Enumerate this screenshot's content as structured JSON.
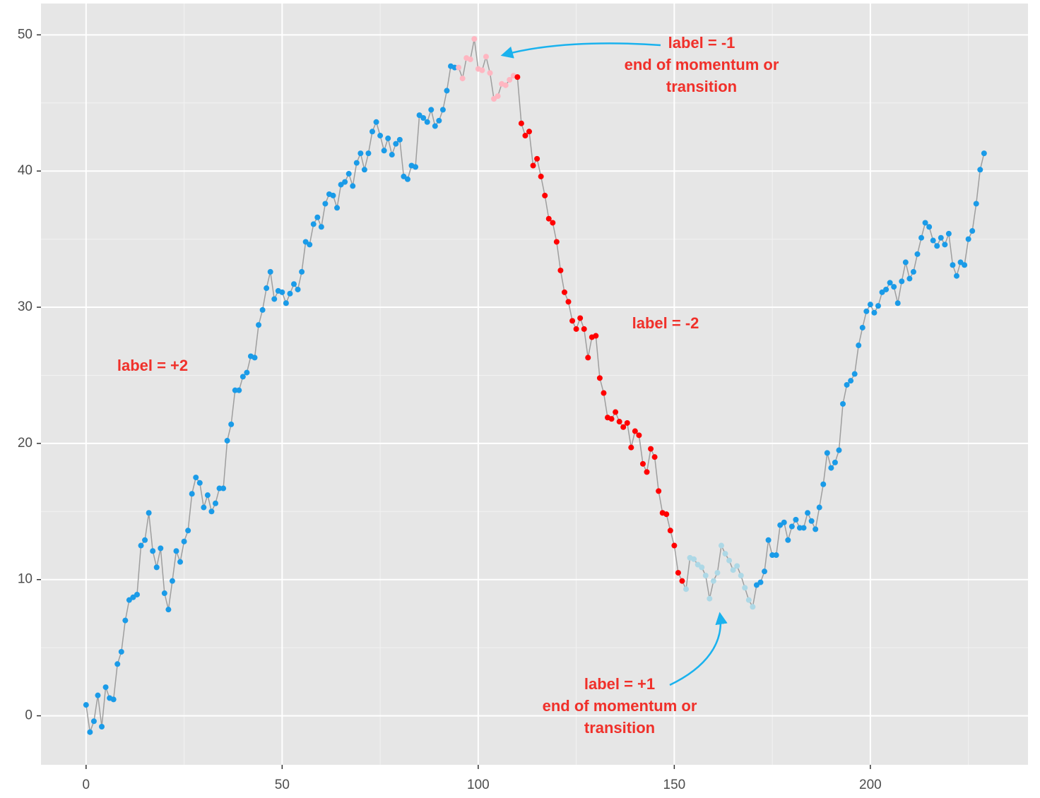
{
  "chart_data": {
    "type": "line",
    "xlim": [
      -11.5,
      240.2
    ],
    "ylim": [
      -3.6,
      52.3
    ],
    "xticks": [
      0,
      50,
      100,
      150,
      200
    ],
    "yticks": [
      0,
      10,
      20,
      30,
      40,
      50
    ],
    "minor_xticks": [
      25,
      75,
      125,
      175,
      225
    ],
    "minor_yticks": [
      5,
      15,
      25,
      35,
      45
    ],
    "grid": true,
    "line_color": "#9e9e9e",
    "series": [
      {
        "color": "#1a9be8",
        "x": [
          0,
          1,
          2,
          3,
          4,
          5,
          6,
          7,
          8,
          9,
          10,
          11,
          12,
          13,
          14,
          15,
          16,
          17,
          18,
          19,
          20,
          21,
          22,
          23,
          24,
          25,
          26,
          27,
          28,
          29,
          30,
          31,
          32,
          33,
          34,
          35,
          36,
          37,
          38,
          39,
          40,
          41,
          42,
          43,
          44,
          45,
          46,
          47,
          48,
          49,
          50,
          51,
          52,
          53,
          54,
          55,
          56,
          57,
          58,
          59,
          60,
          61,
          62,
          63,
          64,
          65,
          66,
          67,
          68,
          69,
          70,
          71,
          72,
          73,
          74,
          75,
          76,
          77,
          78,
          79,
          80,
          81,
          82,
          83,
          84,
          85,
          86,
          87,
          88,
          89,
          90,
          91,
          92,
          93,
          94
        ],
        "values": [
          0.8,
          -1.2,
          -0.4,
          1.5,
          -0.8,
          2.1,
          1.3,
          1.2,
          3.8,
          4.7,
          7.0,
          8.5,
          8.7,
          8.9,
          12.5,
          12.9,
          14.9,
          12.1,
          10.9,
          12.3,
          9.0,
          7.8,
          9.9,
          12.1,
          11.3,
          12.8,
          13.6,
          16.3,
          17.5,
          17.1,
          15.3,
          16.2,
          15.0,
          15.6,
          16.7,
          16.7,
          20.2,
          21.4,
          23.9,
          23.9,
          24.9,
          25.2,
          26.4,
          26.3,
          28.7,
          29.8,
          31.4,
          32.6,
          30.6,
          31.2,
          31.1,
          30.3,
          31.0,
          31.7,
          31.3,
          32.6,
          34.8,
          34.6,
          36.1,
          36.6,
          35.9,
          37.6,
          38.3,
          38.2,
          37.3,
          39.0,
          39.2,
          39.8,
          38.9,
          40.6,
          41.3,
          40.1,
          41.3,
          42.9,
          43.6,
          42.6,
          41.5,
          42.4,
          41.2,
          42.0,
          42.3,
          39.6,
          39.4,
          40.4,
          40.3,
          44.1,
          43.9,
          43.6,
          44.5,
          43.3,
          43.7,
          44.5,
          45.9,
          47.7,
          47.6
        ]
      },
      {
        "color": "#ffb6c1",
        "x": [
          95,
          96,
          97,
          98,
          99,
          100,
          101,
          102,
          103,
          104,
          105,
          106,
          107,
          108,
          109
        ],
        "values": [
          47.6,
          46.8,
          48.3,
          48.2,
          49.7,
          47.5,
          47.4,
          48.4,
          47.2,
          45.3,
          45.5,
          46.4,
          46.3,
          46.7,
          47.0
        ]
      },
      {
        "color": "#ff0000",
        "x": [
          110,
          111,
          112,
          113,
          114,
          115,
          116,
          117,
          118,
          119,
          120,
          121,
          122,
          123,
          124,
          125,
          126,
          127,
          128,
          129,
          130,
          131,
          132,
          133,
          134,
          135,
          136,
          137,
          138,
          139,
          140,
          141,
          142,
          143,
          144,
          145,
          146,
          147,
          148,
          149,
          150,
          151,
          152
        ],
        "values": [
          46.9,
          43.5,
          42.6,
          42.9,
          40.4,
          40.9,
          39.6,
          38.2,
          36.5,
          36.2,
          34.8,
          32.7,
          31.1,
          30.4,
          29.0,
          28.4,
          29.2,
          28.4,
          26.3,
          27.8,
          27.9,
          24.8,
          23.7,
          21.9,
          21.8,
          22.3,
          21.6,
          21.2,
          21.5,
          19.7,
          20.9,
          20.6,
          18.5,
          17.9,
          19.6,
          19.0,
          16.5,
          14.9,
          14.8,
          13.6,
          12.5,
          10.5,
          9.9
        ]
      },
      {
        "color": "#add8e6",
        "x": [
          153,
          154,
          155,
          156,
          157,
          158,
          159,
          160,
          161,
          162,
          163,
          164,
          165,
          166,
          167,
          168,
          169,
          170
        ],
        "values": [
          9.3,
          11.6,
          11.5,
          11.1,
          10.9,
          10.3,
          8.6,
          9.9,
          10.5,
          12.5,
          11.9,
          11.4,
          10.7,
          11.0,
          10.3,
          9.4,
          8.5,
          8.0
        ]
      },
      {
        "color": "#1a9be8",
        "x": [
          171,
          172,
          173,
          174,
          175,
          176,
          177,
          178,
          179,
          180,
          181,
          182,
          183,
          184,
          185,
          186,
          187,
          188,
          189,
          190,
          191,
          192,
          193,
          194,
          195,
          196,
          197,
          198,
          199,
          200,
          201,
          202,
          203,
          204,
          205,
          206,
          207,
          208,
          209,
          210,
          211,
          212,
          213,
          214,
          215,
          216,
          217,
          218,
          219,
          220,
          221,
          222,
          223,
          224,
          225,
          226,
          227,
          228,
          229
        ],
        "values": [
          9.6,
          9.8,
          10.6,
          12.9,
          11.8,
          11.8,
          14.0,
          14.2,
          12.9,
          13.9,
          14.4,
          13.8,
          13.8,
          14.9,
          14.3,
          13.7,
          15.3,
          17.0,
          19.3,
          18.2,
          18.6,
          19.5,
          22.9,
          24.3,
          24.6,
          25.1,
          27.2,
          28.5,
          29.7,
          30.2,
          29.6,
          30.1,
          31.1,
          31.3,
          31.8,
          31.5,
          30.3,
          31.9,
          33.3,
          32.1,
          32.6,
          33.9,
          35.1,
          36.2,
          35.9,
          34.9,
          34.5,
          35.1,
          34.6,
          35.4,
          33.1,
          32.3,
          33.3,
          33.1,
          35.0,
          35.6,
          37.6,
          40.1,
          41.3
        ]
      }
    ],
    "annotations": [
      {
        "lines": [
          "label = -1",
          "end of momentum or",
          "transition"
        ]
      },
      {
        "lines": [
          "label = -2"
        ]
      },
      {
        "lines": [
          "label = +2"
        ]
      },
      {
        "lines": [
          "label = +1",
          "end of momentum or",
          "transition"
        ]
      }
    ]
  }
}
